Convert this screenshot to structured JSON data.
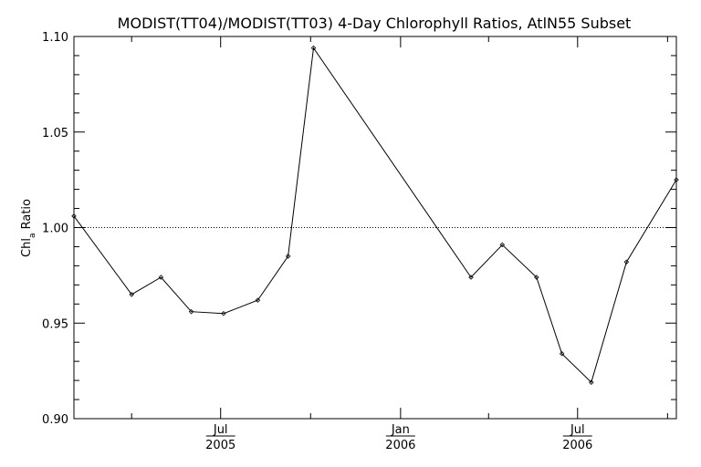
{
  "chart_data": {
    "type": "line",
    "title": "MODIST(TT04)/MODIST(TT03) 4-Day Chlorophyll Ratios, AtlN55 Subset",
    "xlabel": "",
    "ylabel": "Chl",
    "ylabel_sub": "a",
    "ylabel_suffix": " Ratio",
    "ylim": [
      0.9,
      1.1
    ],
    "xlim": [
      "2005-02-01",
      "2006-10-10"
    ],
    "yticks": [
      "0.90",
      "0.95",
      "1.00",
      "1.05",
      "1.10"
    ],
    "yticks_values": [
      0.9,
      0.95,
      1.0,
      1.05,
      1.1
    ],
    "xticks": [
      {
        "date": "2005-07-01",
        "month": "Jul",
        "year": "2005"
      },
      {
        "date": "2006-01-01",
        "month": "Jan",
        "year": "2006"
      },
      {
        "date": "2006-07-01",
        "month": "Jul",
        "year": "2006"
      }
    ],
    "x_minor_ticks": [
      "2005-04-01",
      "2005-10-01",
      "2006-04-01",
      "2006-10-01"
    ],
    "reference_line": 1.0,
    "grid": false,
    "series": [
      {
        "x": [
          "2005-02-01",
          "2005-04-01",
          "2005-05-01",
          "2005-06-01",
          "2005-07-04",
          "2005-08-08",
          "2005-09-08",
          "2005-10-04",
          "2006-03-14",
          "2006-04-15",
          "2006-05-20",
          "2006-06-15",
          "2006-07-15",
          "2006-08-20",
          "2006-10-10"
        ],
        "y": [
          1.006,
          0.965,
          0.974,
          0.956,
          0.955,
          0.962,
          0.985,
          1.094,
          0.974,
          0.991,
          0.974,
          0.934,
          0.919,
          0.982,
          1.025
        ]
      }
    ]
  }
}
